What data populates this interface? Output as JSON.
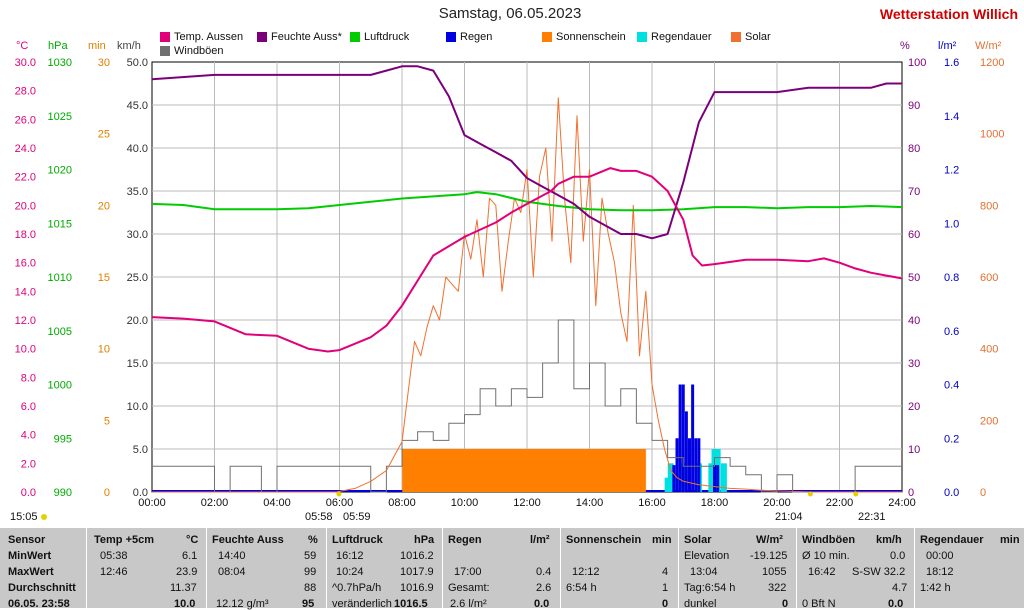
{
  "header": {
    "title": "Samstag, 06.05.2023",
    "station": "Wetterstation Willich"
  },
  "axis_headers": {
    "temp": "°C",
    "press": "hPa",
    "min": "min",
    "wind": "km/h",
    "hum": "%",
    "rain": "l/m²",
    "solar": "W/m²"
  },
  "legend": [
    {
      "label": "Temp. Aussen",
      "color": "#e0007a"
    },
    {
      "label": "Feuchte Auss*",
      "color": "#7a007a"
    },
    {
      "label": "Luftdruck",
      "color": "#00cc00"
    },
    {
      "label": "Regen",
      "color": "#0000e0"
    },
    {
      "label": "Sonnenschein",
      "color": "#ff8000"
    },
    {
      "label": "Regendauer",
      "color": "#00e0e0"
    },
    {
      "label": "Solar",
      "color": "#f07030"
    },
    {
      "label": "Windböen",
      "color": "#707070"
    }
  ],
  "colors": {
    "temp": "#e0007a",
    "hum": "#7a007a",
    "press": "#00cc00",
    "rain": "#0000e0",
    "sun": "#ff8000",
    "raindur": "#00e0e0",
    "solar": "#f07030",
    "wind": "#707070",
    "station": "#d00000",
    "table_bg": "#c8c8c8"
  },
  "chart_data": {
    "type": "line",
    "title": "Samstag, 06.05.2023",
    "x_ticks": [
      "00:00",
      "02:00",
      "04:00",
      "06:00",
      "08:00",
      "10:00",
      "12:00",
      "14:00",
      "16:00",
      "18:00",
      "20:00",
      "22:00",
      "24:00"
    ],
    "xlim": [
      0,
      24
    ],
    "axes": {
      "temp": {
        "unit": "°C",
        "range": [
          0,
          30
        ],
        "ticks": [
          "0.0",
          "2.0",
          "4.0",
          "6.0",
          "8.0",
          "10.0",
          "12.0",
          "14.0",
          "16.0",
          "18.0",
          "20.0",
          "22.0",
          "24.0",
          "26.0",
          "28.0",
          "30.0"
        ]
      },
      "press": {
        "unit": "hPa",
        "range": [
          990,
          1030
        ],
        "ticks": [
          "990",
          "995",
          "1000",
          "1005",
          "1010",
          "1015",
          "1020",
          "1025",
          "1030"
        ]
      },
      "min": {
        "unit": "min",
        "range": [
          0,
          30
        ],
        "ticks": [
          "0",
          "5",
          "10",
          "15",
          "20",
          "25",
          "30"
        ]
      },
      "wind": {
        "unit": "km/h",
        "range": [
          0,
          50
        ],
        "ticks": [
          "0.0",
          "5.0",
          "10.0",
          "15.0",
          "20.0",
          "25.0",
          "30.0",
          "35.0",
          "40.0",
          "45.0",
          "50.0"
        ]
      },
      "hum": {
        "unit": "%",
        "range": [
          0,
          100
        ],
        "ticks": [
          "0",
          "10",
          "20",
          "30",
          "40",
          "50",
          "60",
          "70",
          "80",
          "90",
          "100"
        ]
      },
      "rain": {
        "unit": "l/m²",
        "range": [
          0,
          1.6
        ],
        "ticks": [
          "0.0",
          "0.2",
          "0.4",
          "0.6",
          "0.8",
          "1.0",
          "1.2",
          "1.4",
          "1.6"
        ]
      },
      "solar": {
        "unit": "W/m²",
        "range": [
          0,
          1200
        ],
        "ticks": [
          "0",
          "200",
          "400",
          "600",
          "800",
          "1000",
          "1200"
        ]
      }
    },
    "series": [
      {
        "name": "Temp. Aussen",
        "axis": "temp",
        "x": [
          0,
          1,
          2,
          3,
          4,
          5,
          5.63,
          6,
          7,
          7.5,
          8,
          9,
          10,
          11,
          11.5,
          12,
          12.77,
          13,
          13.5,
          14,
          14.67,
          15,
          15.5,
          16,
          16.5,
          17,
          17.3,
          17.6,
          18,
          19,
          20,
          21,
          21.5,
          22,
          22.5,
          23,
          23.5,
          24
        ],
        "y": [
          12.2,
          12.1,
          11.9,
          11.0,
          10.9,
          10.0,
          9.8,
          9.9,
          10.8,
          11.6,
          13.0,
          16.5,
          17.8,
          18.8,
          19.5,
          20.1,
          21.0,
          21.5,
          22.0,
          22.0,
          22.6,
          22.4,
          22.4,
          22.0,
          21.0,
          19.0,
          16.5,
          15.8,
          15.9,
          16.2,
          16.2,
          16.1,
          16.3,
          16.0,
          15.6,
          15.3,
          15.1,
          14.9
        ]
      },
      {
        "name": "Feuchte Auss*",
        "axis": "hum",
        "x": [
          0,
          2,
          3,
          4,
          5,
          6,
          7,
          7.5,
          8,
          8.5,
          9,
          9.5,
          10,
          10.5,
          11,
          11.5,
          12,
          12.5,
          13,
          13.5,
          14,
          14.5,
          15,
          15.5,
          16,
          16.5,
          17,
          17.5,
          18,
          19,
          20,
          21,
          21.5,
          22,
          23,
          23.5,
          24
        ],
        "y": [
          96,
          97,
          97,
          97,
          97,
          97,
          97,
          98,
          99,
          99,
          98,
          92,
          83,
          81,
          79,
          77,
          73,
          71,
          69,
          67,
          64,
          62,
          60,
          60,
          59,
          60,
          72,
          86,
          93,
          93,
          93,
          94,
          94,
          94,
          94,
          95,
          95
        ]
      },
      {
        "name": "Luftdruck",
        "axis": "press",
        "x": [
          0,
          1,
          2,
          3,
          4,
          5,
          6,
          7,
          8,
          9,
          10,
          10.4,
          11,
          12,
          13,
          14,
          15,
          16,
          17,
          18,
          19,
          20,
          21,
          22,
          23,
          24
        ],
        "y": [
          1016.8,
          1016.7,
          1016.3,
          1016.3,
          1016.3,
          1016.4,
          1016.7,
          1017.0,
          1017.3,
          1017.5,
          1017.7,
          1017.9,
          1017.7,
          1017.0,
          1016.6,
          1016.3,
          1016.2,
          1016.2,
          1016.3,
          1016.5,
          1016.5,
          1016.4,
          1016.5,
          1016.5,
          1016.6,
          1016.5
        ]
      },
      {
        "name": "Solar",
        "axis": "solar",
        "x": [
          0,
          5.9,
          6.5,
          7,
          7.5,
          8,
          8.2,
          8.4,
          8.6,
          8.8,
          9,
          9.2,
          9.4,
          9.6,
          9.8,
          10,
          10.2,
          10.4,
          10.6,
          10.8,
          11,
          11.2,
          11.4,
          11.6,
          11.8,
          12,
          12.2,
          12.4,
          12.6,
          12.8,
          13,
          13.2,
          13.4,
          13.6,
          13.8,
          14,
          14.2,
          14.4,
          14.6,
          14.8,
          15,
          15.2,
          15.4,
          15.6,
          15.8,
          16,
          16.2,
          16.4,
          16.6,
          16.8,
          17,
          17.5,
          18,
          18.5,
          19,
          19.5,
          20,
          21.1,
          24
        ],
        "y": [
          0,
          0,
          10,
          30,
          60,
          140,
          280,
          420,
          380,
          460,
          520,
          480,
          600,
          580,
          560,
          720,
          650,
          760,
          600,
          820,
          800,
          560,
          700,
          820,
          780,
          900,
          600,
          880,
          960,
          700,
          1100,
          820,
          640,
          1050,
          700,
          900,
          520,
          820,
          720,
          640,
          500,
          420,
          800,
          380,
          560,
          300,
          200,
          120,
          60,
          40,
          30,
          20,
          15,
          10,
          8,
          5,
          3,
          0,
          0
        ]
      },
      {
        "name": "Windböen",
        "axis": "wind",
        "x": [
          0,
          0.5,
          1,
          1.5,
          2,
          2.5,
          3,
          3.5,
          4,
          4.5,
          5,
          5.5,
          6,
          6.5,
          7,
          7.5,
          8,
          8.5,
          9,
          9.5,
          10,
          10.5,
          11,
          11.5,
          12,
          12.5,
          13,
          13.5,
          14,
          14.5,
          15,
          15.5,
          16,
          16.5,
          17,
          17.5,
          18,
          18.5,
          19,
          19.5,
          20,
          20.5,
          21,
          21.5,
          22,
          22.5,
          23,
          23.5,
          24
        ],
        "y": [
          3,
          3,
          3,
          3,
          0,
          3,
          3,
          0,
          3,
          3,
          3,
          3,
          3,
          3,
          0,
          3,
          6,
          7,
          6,
          8,
          9,
          12,
          10,
          12,
          11,
          15,
          20,
          12,
          15,
          10,
          12,
          8,
          6,
          4,
          3,
          3,
          4,
          3,
          2,
          0,
          2,
          0,
          0,
          0,
          0,
          3,
          3,
          3,
          3
        ]
      },
      {
        "name": "Sonnenschein",
        "axis": "min",
        "x": [
          0,
          8,
          8.01,
          15.8,
          15.81,
          24
        ],
        "y": [
          0,
          0,
          3,
          3,
          0,
          0
        ]
      },
      {
        "name": "Regen",
        "axis": "rain",
        "x": [
          16.7,
          16.8,
          16.9,
          17.0,
          17.1,
          17.2,
          17.3,
          17.4,
          17.5,
          18.0,
          18.1
        ],
        "y": [
          0.1,
          0.2,
          0.4,
          0.4,
          0.3,
          0.2,
          0.4,
          0.2,
          0.2,
          0.1,
          0.1
        ]
      },
      {
        "name": "Regendauer",
        "axis": "min",
        "x": [
          16.5,
          16.6,
          17.0,
          17.5,
          17.9,
          18.0,
          18.1,
          18.3
        ],
        "y": [
          1,
          2,
          2,
          2,
          2,
          3,
          3,
          2
        ]
      }
    ],
    "markers": {
      "sunrise": "05:58",
      "sunrise_alt": "05:59",
      "sunset": "21:04",
      "extra": "22:31",
      "left_time": "15:05"
    }
  },
  "stats_table": {
    "header": [
      "Sensor",
      "Temp +5cm",
      "°C",
      "Feuchte Auss",
      "%",
      "Luftdruck",
      "hPa",
      "Regen",
      "l/m²",
      "Sonnenschein",
      "min",
      "Solar",
      "W/m²",
      "Windböen",
      "km/h",
      "Regendauer",
      "min"
    ],
    "row_labels": [
      "MinWert",
      "MaxWert",
      "Durchschnitt",
      "06.05. 23:58"
    ],
    "temp": {
      "min_time": "05:38",
      "min": "6.1",
      "max_time": "12:46",
      "max": "23.9",
      "avg": "11.37",
      "now": "10.0"
    },
    "hum": {
      "min_time": "14:40",
      "min": "59",
      "max_time": "08:04",
      "max": "99",
      "avg": "88",
      "abs": "12.12 g/m³",
      "now": "95"
    },
    "press": {
      "min_time": "16:12",
      "min": "1016.2",
      "max_time": "10:24",
      "max": "1017.9",
      "trend_label": "^0.7hPa/h",
      "trend": "1016.9",
      "change_label": "veränderlich",
      "now": "1016.5"
    },
    "rain": {
      "t1": "17:00",
      "v1": "0.4",
      "label2": "Gesamt:",
      "v2": "2.6",
      "label3": "2.6 l/m²",
      "v3": "0.0"
    },
    "sun": {
      "t1": "12:12",
      "v1": "4",
      "t2": "6:54 h",
      "v2": "1",
      "v3": "0"
    },
    "solar": {
      "l1": "Elevation",
      "v1": "-19.125",
      "l2": "13:04",
      "v2": "1055",
      "l3": "Tag:6:54 h",
      "v3": "322",
      "l4": "dunkel",
      "v4": "0"
    },
    "wind": {
      "l1": "Ø 10 min.",
      "v1": "0.0",
      "l2": "16:42",
      "l2b": "S-SW 32.2",
      "v3": "4.7",
      "l4": "0 Bft N",
      "v4": "0.0"
    },
    "raindur": {
      "t1": "00:00",
      "t2": "18:12",
      "t3": "1:42 h"
    }
  }
}
